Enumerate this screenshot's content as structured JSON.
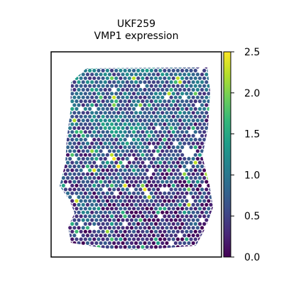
{
  "chart_data": {
    "type": "scatter",
    "title": "UKF259",
    "subtitle": "VMP1 expression",
    "xlabel": "",
    "ylabel": "",
    "grid": false,
    "colormap": "viridis",
    "colorbar": {
      "min": 0.0,
      "max": 2.5,
      "ticks": [
        0.0,
        0.5,
        1.0,
        1.5,
        2.0,
        2.5
      ],
      "tick_labels": [
        "0.0",
        "0.5",
        "1.0",
        "1.5",
        "2.0",
        "2.5"
      ],
      "placement": "right"
    },
    "spot_density": {
      "typical_value_range": [
        0.0,
        1.2
      ],
      "sparse_high_values_up_to": 2.5,
      "description_regions_high": [
        "upper-left",
        "center",
        "bottom-right"
      ]
    }
  },
  "colors": {
    "viridis": [
      "#440154",
      "#482878",
      "#3e4a89",
      "#31688e",
      "#26828e",
      "#1f9e89",
      "#35b779",
      "#6ece58",
      "#b5de2b",
      "#fde725"
    ],
    "frame": "#000000",
    "background": "#ffffff"
  }
}
